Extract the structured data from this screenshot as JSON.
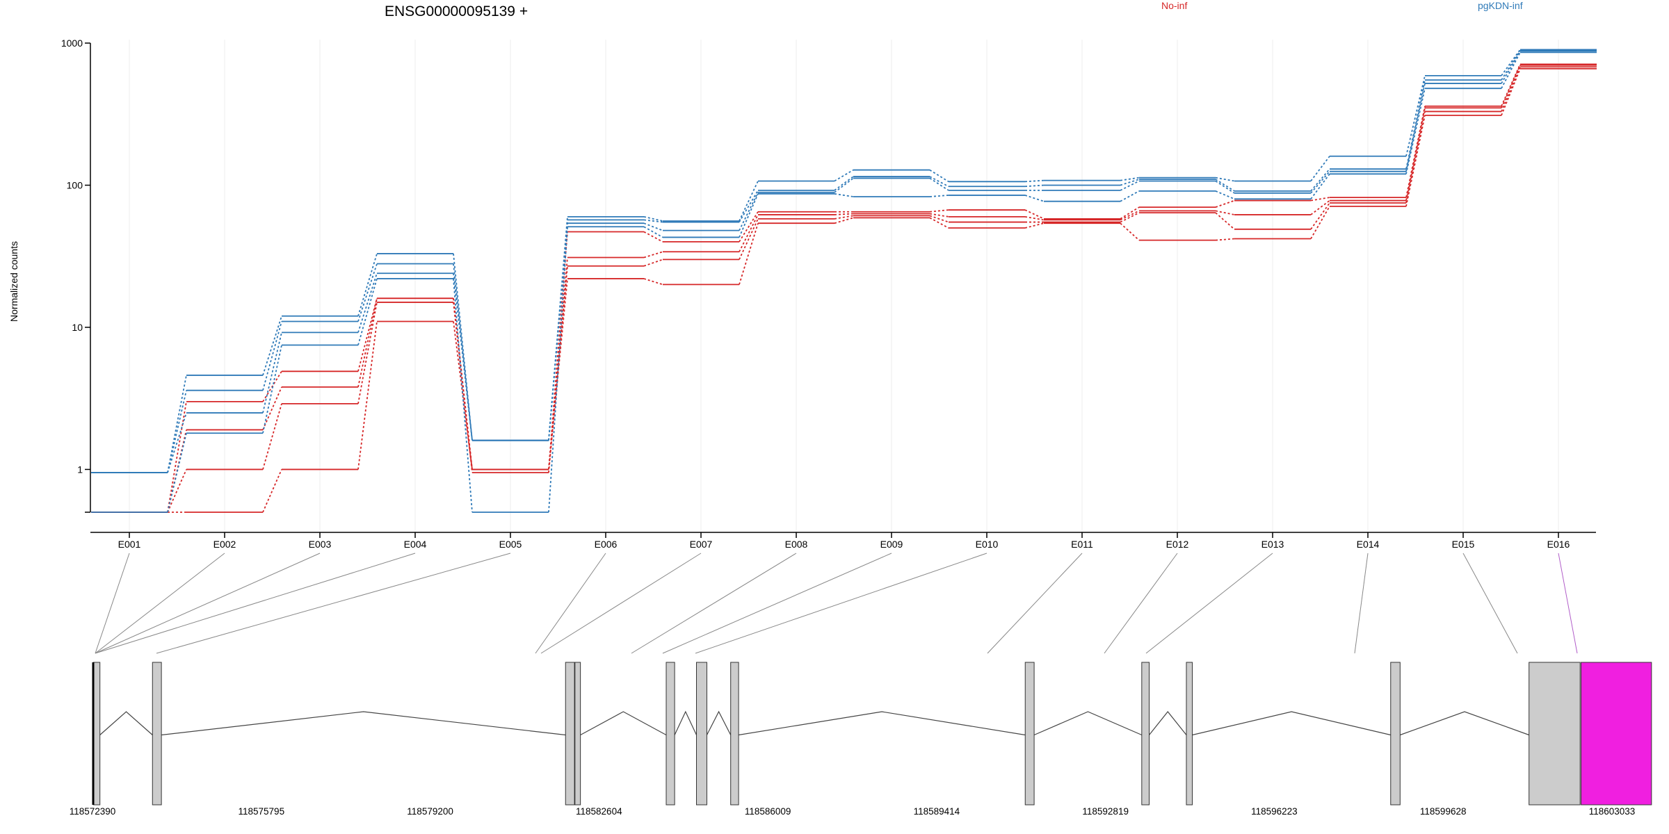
{
  "header": {
    "gene_title": "ENSG00000095139 +",
    "legend_no_inf": "No-inf",
    "legend_pgkdn_inf": "pgKDN-inf"
  },
  "colors": {
    "no_inf": "#d62728",
    "pgkdn_inf": "#2f7ab8",
    "exon_fill": "#cccccc",
    "highlight_exon": "#f01fe0",
    "gridline": "#eeeeee"
  },
  "chart_data": {
    "type": "line",
    "title": "ENSG00000095139 +",
    "ylabel": "Normalized counts",
    "yscale": "log",
    "yticks": [
      "1",
      "10",
      "100",
      "1000"
    ],
    "y_tick_values": [
      1,
      10,
      100,
      1000
    ],
    "ylim": [
      0.5,
      1000
    ],
    "grid": true,
    "legend_placement": "top",
    "categories": [
      "E001",
      "E002",
      "E003",
      "E004",
      "E005",
      "E006",
      "E007",
      "E008",
      "E009",
      "E010",
      "E011",
      "E012",
      "E013",
      "E014",
      "E015",
      "E016"
    ],
    "series": [
      {
        "group": "No-inf",
        "values": [
          0.5,
          0.5,
          1.0,
          11,
          1.0,
          22,
          20,
          54,
          59,
          50,
          54,
          41,
          42,
          71,
          310,
          660
        ]
      },
      {
        "group": "No-inf",
        "values": [
          0.5,
          1.0,
          2.9,
          15,
          0.95,
          27,
          30,
          58,
          61,
          55,
          55,
          64,
          49,
          75,
          330,
          680
        ]
      },
      {
        "group": "No-inf",
        "values": [
          0.5,
          1.9,
          3.8,
          16,
          1.0,
          31,
          34,
          62,
          63,
          60,
          57,
          66,
          62,
          78,
          350,
          700
        ]
      },
      {
        "group": "No-inf",
        "values": [
          0.5,
          3.0,
          4.9,
          16,
          1.0,
          47,
          40,
          65,
          65,
          67,
          58,
          70,
          78,
          82,
          360,
          710
        ]
      },
      {
        "group": "pgKDN-inf",
        "values": [
          0.5,
          1.8,
          7.5,
          22,
          0.5,
          51,
          43,
          87,
          83,
          85,
          77,
          91,
          80,
          120,
          480,
          860
        ]
      },
      {
        "group": "pgKDN-inf",
        "values": [
          0.95,
          2.5,
          9.2,
          24,
          1.6,
          54,
          48,
          89,
          112,
          92,
          92,
          107,
          88,
          125,
          520,
          880
        ]
      },
      {
        "group": "pgKDN-inf",
        "values": [
          0.95,
          3.6,
          11,
          28,
          1.6,
          57,
          55,
          92,
          115,
          98,
          100,
          110,
          91,
          130,
          550,
          890
        ]
      },
      {
        "group": "pgKDN-inf",
        "values": [
          0.95,
          4.6,
          12,
          33,
          1.6,
          60,
          56,
          107,
          128,
          106,
          108,
          113,
          107,
          160,
          590,
          900
        ]
      }
    ],
    "genomic_axis_labels": [
      "118572390",
      "118575795",
      "118579200",
      "118582604",
      "118586009",
      "118589414",
      "118592819",
      "118596223",
      "118599628",
      "118603033"
    ],
    "genomic_axis_values": [
      118572390,
      118575795,
      118579200,
      118582604,
      118586009,
      118589414,
      118592819,
      118596223,
      118599628,
      118603033
    ],
    "exon_genomic_ranges": [
      [
        118572410,
        118572540
      ],
      [
        118573600,
        118573780
      ],
      [
        118581930,
        118582110
      ],
      [
        118582120,
        118582230
      ],
      [
        118583960,
        118584130
      ],
      [
        118584570,
        118584780
      ],
      [
        118585260,
        118585420
      ],
      [
        118591200,
        118591380
      ],
      [
        118593550,
        118593700
      ],
      [
        118594450,
        118594570
      ],
      [
        118598570,
        118598760
      ],
      [
        118601360,
        118602390
      ],
      [
        118602410,
        118603830
      ]
    ],
    "highlighted_exon": "E016"
  }
}
